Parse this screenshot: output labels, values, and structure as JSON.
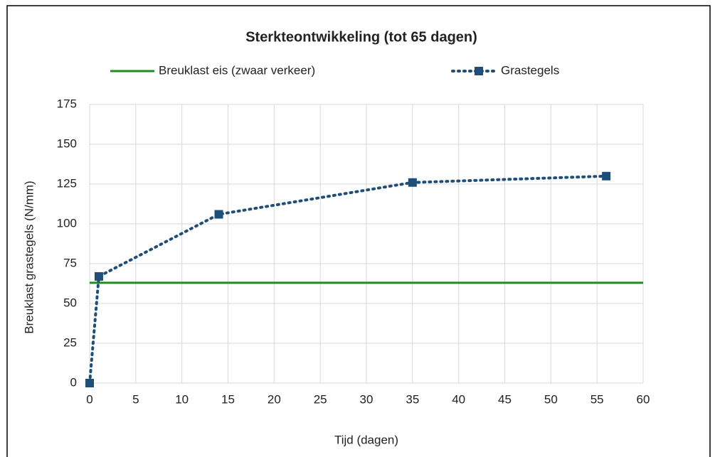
{
  "chart_data": {
    "type": "line",
    "title": "Sterkteontwikkeling (tot 65 dagen)",
    "x_label": "Tijd (dagen)",
    "y_label": "Breuklast grastegels (N/mm)",
    "series": [
      {
        "name": "Breuklast eis (zwaar verkeer)",
        "color": "#1e8c1e",
        "style": "solid",
        "marker": false,
        "x": [
          0,
          60
        ],
        "values": [
          63,
          63
        ]
      },
      {
        "name": "Grastegels",
        "color": "#1f4e79",
        "style": "dotted",
        "marker": true,
        "x": [
          0,
          1,
          14,
          35,
          56
        ],
        "values": [
          0,
          67,
          106,
          126,
          130
        ]
      }
    ],
    "xlim": [
      0,
      60
    ],
    "xticks": [
      0,
      5,
      10,
      15,
      20,
      25,
      30,
      35,
      40,
      45,
      50,
      55,
      60
    ],
    "ylim": [
      0,
      175
    ],
    "yticks": [
      0,
      25,
      50,
      75,
      100,
      125,
      150,
      175
    ],
    "grid": true,
    "legend": "top"
  }
}
